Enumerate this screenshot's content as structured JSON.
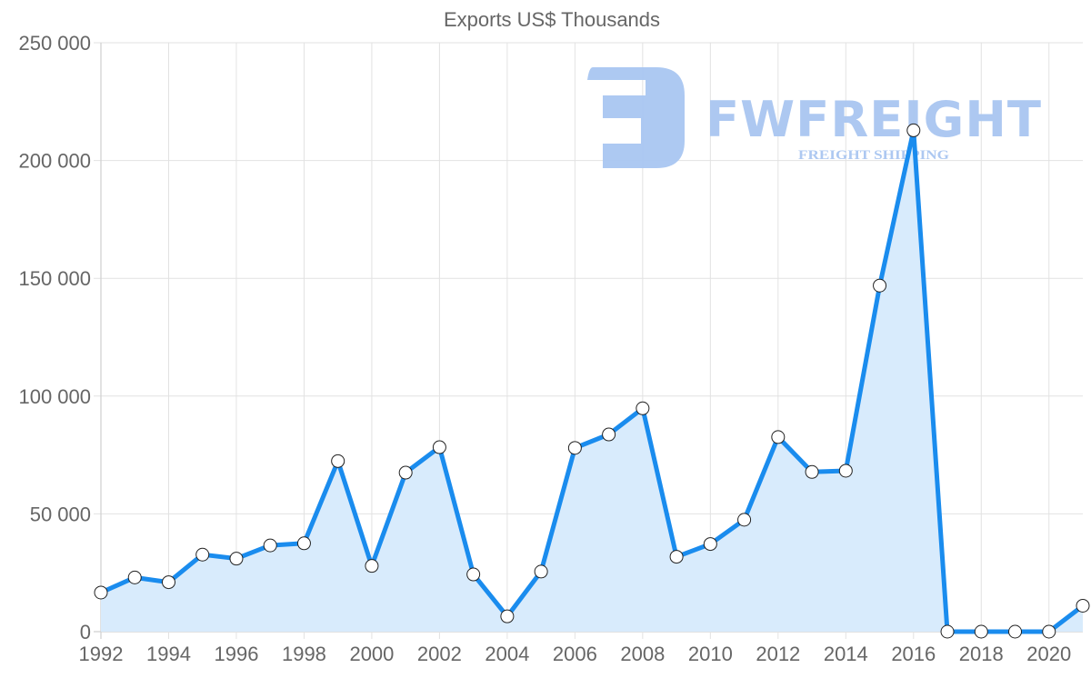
{
  "chart": {
    "title": "Exports US$ Thousands",
    "watermark": {
      "brand": "FWFREIGHT",
      "tagline": "FREIGHT SHIPPING"
    },
    "colors": {
      "line": "#1a8cee",
      "fill": "#d8ebfc",
      "point_fill": "#ffffff",
      "point_stroke": "#222222",
      "grid": "#e2e2e2",
      "text": "#666666",
      "watermark": "#a9c6f1"
    }
  },
  "chart_data": {
    "type": "area",
    "title": "Exports US$ Thousands",
    "xlabel": "",
    "ylabel": "",
    "x": [
      1992,
      1993,
      1994,
      1995,
      1996,
      1997,
      1998,
      1999,
      2000,
      2001,
      2002,
      2003,
      2004,
      2005,
      2006,
      2007,
      2008,
      2009,
      2010,
      2011,
      2012,
      2013,
      2014,
      2015,
      2016,
      2017,
      2018,
      2019,
      2020,
      2021
    ],
    "series": [
      {
        "name": "Exports US$ Thousands",
        "values": [
          16600,
          23000,
          21000,
          32700,
          31000,
          36600,
          37500,
          72400,
          27900,
          67500,
          78300,
          24300,
          6500,
          25500,
          78000,
          83700,
          94800,
          31800,
          37200,
          47500,
          82600,
          67800,
          68300,
          146900,
          212800,
          0,
          0,
          0,
          0,
          11000
        ]
      }
    ],
    "ylim": [
      0,
      250000
    ],
    "yticks": [
      0,
      50000,
      100000,
      150000,
      200000,
      250000
    ],
    "ytick_labels": [
      "0",
      "50 000",
      "100 000",
      "150 000",
      "200 000",
      "250 000"
    ],
    "xtick_labels": [
      "1992",
      "1994",
      "1996",
      "1998",
      "2000",
      "2002",
      "2004",
      "2006",
      "2008",
      "2010",
      "2012",
      "2014",
      "2016",
      "2018",
      "2020"
    ],
    "grid": true,
    "legend": "none"
  }
}
